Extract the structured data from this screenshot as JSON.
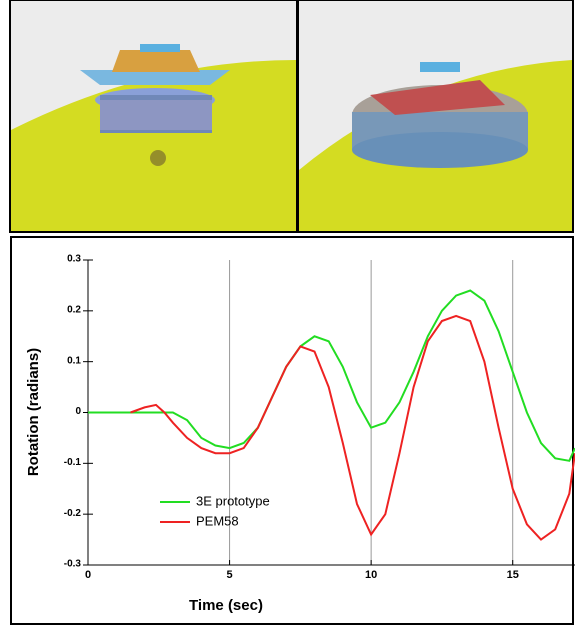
{
  "chart_data": {
    "type": "line",
    "xlabel": "Time (sec)",
    "ylabel": "Rotation (radians)",
    "xlim": [
      0,
      17.2
    ],
    "xticks": [
      0,
      5,
      10,
      15
    ],
    "ylim": [
      -0.3,
      0.3
    ],
    "yticks": [
      -0.3,
      -0.2,
      -0.1,
      0,
      0.1,
      0.2,
      0.3
    ],
    "grid": "x",
    "legend": "lower left",
    "series": [
      {
        "name": "3E prototype",
        "color": "#22dd22",
        "x": [
          0,
          0.5,
          1,
          1.5,
          2,
          2.5,
          3,
          3.5,
          4,
          4.5,
          5,
          5.5,
          6,
          6.5,
          7,
          7.5,
          8,
          8.5,
          9,
          9.5,
          10,
          10.5,
          11,
          11.5,
          12,
          12.5,
          13,
          13.5,
          14,
          14.5,
          15,
          15.5,
          16,
          16.5,
          17,
          17.2
        ],
        "values": [
          0,
          0,
          0,
          0,
          0,
          0,
          0,
          -0.015,
          -0.05,
          -0.065,
          -0.07,
          -0.06,
          -0.03,
          0.03,
          0.09,
          0.13,
          0.15,
          0.14,
          0.09,
          0.02,
          -0.03,
          -0.02,
          0.02,
          0.08,
          0.15,
          0.2,
          0.23,
          0.24,
          0.22,
          0.16,
          0.08,
          0.0,
          -0.06,
          -0.09,
          -0.095,
          -0.07
        ]
      },
      {
        "name": "PEM58",
        "color": "#ee2222",
        "x": [
          1.5,
          2,
          2.4,
          2.7,
          3,
          3.5,
          4,
          4.5,
          5,
          5.5,
          6,
          6.5,
          7,
          7.5,
          8,
          8.5,
          9,
          9.5,
          10,
          10.5,
          11,
          11.5,
          12,
          12.5,
          13,
          13.5,
          14,
          14.5,
          15,
          15.5,
          16,
          16.5,
          17,
          17.2
        ],
        "values": [
          0,
          0.01,
          0.015,
          0,
          -0.02,
          -0.05,
          -0.07,
          -0.08,
          -0.08,
          -0.07,
          -0.03,
          0.03,
          0.09,
          0.13,
          0.12,
          0.05,
          -0.06,
          -0.18,
          -0.24,
          -0.2,
          -0.08,
          0.05,
          0.14,
          0.18,
          0.19,
          0.18,
          0.1,
          -0.03,
          -0.15,
          -0.22,
          -0.25,
          -0.23,
          -0.16,
          -0.08
        ]
      }
    ]
  }
}
